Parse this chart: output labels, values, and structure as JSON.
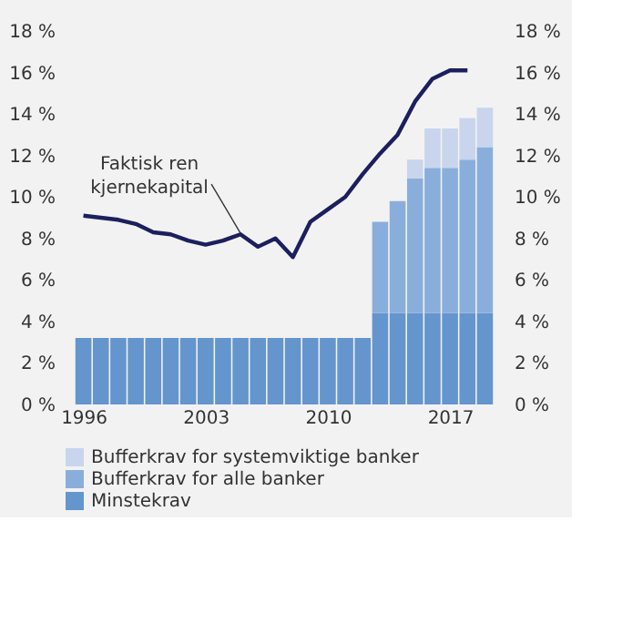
{
  "chart_data": {
    "type": "bar",
    "stacked": true,
    "x": [
      1996,
      1997,
      1998,
      1999,
      2000,
      2001,
      2002,
      2003,
      2004,
      2005,
      2006,
      2007,
      2008,
      2009,
      2010,
      2011,
      2012,
      2013,
      2014,
      2015,
      2016,
      2017,
      2018,
      2019
    ],
    "series": [
      {
        "name": "Minstekrav",
        "color": "#6495cd",
        "values": [
          3.2,
          3.2,
          3.2,
          3.2,
          3.2,
          3.2,
          3.2,
          3.2,
          3.2,
          3.2,
          3.2,
          3.2,
          3.2,
          3.2,
          3.2,
          3.2,
          3.2,
          4.4,
          4.4,
          4.4,
          4.4,
          4.4,
          4.4,
          4.4
        ]
      },
      {
        "name": "Bufferkrav for alle banker",
        "color": "#8aaedb",
        "values": [
          null,
          null,
          null,
          null,
          null,
          null,
          null,
          null,
          null,
          null,
          null,
          null,
          null,
          null,
          null,
          null,
          null,
          4.4,
          5.4,
          6.5,
          7.0,
          7.0,
          7.4,
          8.0
        ]
      },
      {
        "name": "Bufferkrav for systemviktige banker",
        "color": "#c8d5ec",
        "values": [
          null,
          null,
          null,
          null,
          null,
          null,
          null,
          null,
          null,
          null,
          null,
          null,
          null,
          null,
          null,
          null,
          null,
          null,
          null,
          0.9,
          1.9,
          1.9,
          2.0,
          1.9
        ]
      },
      {
        "type": "line",
        "color": "#1c1f5e",
        "x": [
          1996,
          1997,
          1998,
          1999,
          2000,
          2001,
          2002,
          2003,
          2004,
          2005,
          2006,
          2007,
          2008,
          2009,
          2010,
          2011,
          2012,
          2013,
          2014,
          2015,
          2016,
          2017,
          2018
        ],
        "values": [
          9.1,
          9.0,
          8.9,
          8.7,
          8.3,
          8.2,
          7.9,
          7.7,
          7.9,
          8.2,
          7.6,
          8.0,
          7.1,
          8.8,
          9.4,
          10.0,
          11.1,
          12.1,
          13.0,
          14.6,
          15.7,
          16.1,
          16.1
        ]
      }
    ],
    "annotations": [
      {
        "text": "Faktisk ren\nkjernekapital",
        "x": 2005,
        "y": 8.25
      }
    ],
    "xlim": [
      1995.5,
      2019.5
    ],
    "xticks": [
      1996,
      2003,
      2010,
      2017
    ],
    "ylim": [
      0,
      18
    ],
    "yticks": [
      {
        "value": 0,
        "label": "0 %"
      },
      {
        "value": 2,
        "label": "2 %"
      },
      {
        "value": 4,
        "label": "4 %"
      },
      {
        "value": 6,
        "label": "6 %"
      },
      {
        "value": 8,
        "label": "8 %"
      },
      {
        "value": 10,
        "label": "10 %"
      },
      {
        "value": 12,
        "label": "12 %"
      },
      {
        "value": 14,
        "label": "14 %"
      },
      {
        "value": 16,
        "label": "16 %"
      },
      {
        "value": 18,
        "label": "18 %"
      }
    ],
    "y2lim": [
      0,
      18
    ],
    "y2ticks": [
      {
        "value": 0,
        "label": "0 %"
      },
      {
        "value": 2,
        "label": "2 %"
      },
      {
        "value": 4,
        "label": "4 %"
      },
      {
        "value": 6,
        "label": "6 %"
      },
      {
        "value": 8,
        "label": "8 %"
      },
      {
        "value": 10,
        "label": "10 %"
      },
      {
        "value": 12,
        "label": "12 %"
      },
      {
        "value": 14,
        "label": "14 %"
      },
      {
        "value": 16,
        "label": "16 %"
      },
      {
        "value": 18,
        "label": "18 %"
      }
    ],
    "grid": false,
    "legend": "bottom"
  }
}
